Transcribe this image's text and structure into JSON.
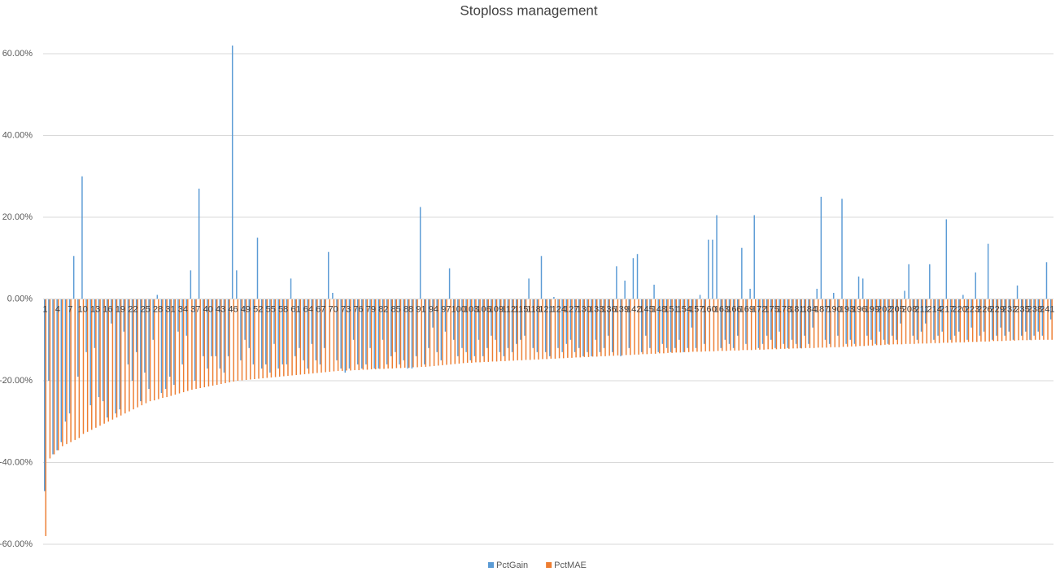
{
  "chart_data": {
    "type": "bar",
    "title": "Stoploss management",
    "categories": [
      "1",
      null,
      null,
      "4",
      null,
      null,
      "7",
      null,
      null,
      "10",
      null,
      null,
      "13",
      null,
      null,
      "16",
      null,
      null,
      "19",
      null,
      null,
      "22",
      null,
      null,
      "25",
      null,
      null,
      "28",
      null,
      null,
      "31",
      null,
      null,
      "34",
      null,
      null,
      "37",
      null,
      null,
      "40",
      null,
      null,
      "43",
      null,
      null,
      "46",
      null,
      null,
      "49",
      null,
      null,
      "52",
      null,
      null,
      "55",
      null,
      null,
      "58",
      null,
      null,
      "61",
      null,
      null,
      "64",
      null,
      null,
      "67",
      null,
      null,
      "70",
      null,
      null,
      "73",
      null,
      null,
      "76",
      null,
      null,
      "79",
      null,
      null,
      "82",
      null,
      null,
      "85",
      null,
      null,
      "88",
      null,
      null,
      "91",
      null,
      null,
      "94",
      null,
      null,
      "97",
      null,
      null,
      "100",
      null,
      null,
      "103",
      null,
      null,
      "106",
      null,
      null,
      "109",
      null,
      null,
      "112",
      null,
      null,
      "115",
      null,
      null,
      "118",
      null,
      null,
      "121",
      null,
      null,
      "124",
      null,
      null,
      "127",
      null,
      null,
      "130",
      null,
      null,
      "133",
      null,
      null,
      "136",
      null,
      null,
      "139",
      null,
      null,
      "142",
      null,
      null,
      "145",
      null,
      null,
      "148",
      null,
      null,
      "151",
      null,
      null,
      "154",
      null,
      null,
      "157",
      null,
      null,
      "160",
      null,
      null,
      "163",
      null,
      null,
      "166",
      null,
      null,
      "169",
      null,
      null,
      "172",
      null,
      null,
      "175",
      null,
      null,
      "178",
      null,
      null,
      "181",
      null,
      null,
      "184",
      null,
      null,
      "187",
      null,
      null,
      "190",
      null,
      null,
      "193",
      null,
      null,
      "196",
      null,
      null,
      "199",
      null,
      null,
      "202",
      null,
      null,
      "205",
      null,
      null,
      "208",
      null,
      null,
      "211",
      null,
      null,
      "214",
      null,
      null,
      "217",
      null,
      null,
      "220",
      null,
      null,
      "223",
      null,
      null,
      "226",
      null,
      null,
      "229",
      null,
      null,
      "232",
      null,
      null,
      "235",
      null,
      null,
      "238",
      null,
      null,
      "241",
      null
    ],
    "series": [
      {
        "name": "PctGain",
        "color": "#5b9bd5",
        "values": [
          -47,
          -20,
          -38,
          -37,
          -35,
          -30,
          -28,
          10.5,
          -19,
          30,
          -13,
          -26,
          -12,
          -24,
          -25,
          -29,
          -6,
          -28,
          -27,
          -8,
          -16,
          -20,
          -13,
          -25,
          -18,
          -22,
          -10,
          1,
          -23,
          -22,
          -19,
          -21,
          -8,
          -16,
          -9,
          7,
          -20,
          27,
          -14,
          -17,
          -14,
          -14,
          -17,
          -18,
          -14,
          62,
          7,
          -15,
          -10,
          -12,
          -16,
          15,
          -17,
          -16,
          -18,
          -11,
          -17,
          -16,
          -16,
          5,
          -14,
          -12,
          -15,
          -17,
          -11,
          -15,
          -16,
          -12,
          11.5,
          1.5,
          -15,
          -17,
          -18,
          -17,
          -10,
          -16,
          -17,
          -16,
          -12,
          -17,
          -17,
          -10,
          -16,
          -14,
          -13,
          -16,
          -15,
          -17,
          -17,
          -14,
          22.5,
          -16,
          -12,
          -7,
          -13,
          -15,
          -8,
          7.5,
          -10,
          -14,
          -12,
          -13,
          -15,
          -14,
          -10,
          -14,
          -12,
          -9,
          -10,
          -13,
          -14,
          -12,
          -13,
          -11,
          -10,
          -9,
          5,
          -12,
          -13,
          10.5,
          -13,
          -14,
          0.5,
          -12,
          -13,
          -11,
          -10,
          -13,
          -12,
          -14,
          -13,
          -14,
          -10,
          -13,
          -12,
          -9,
          -13,
          8,
          -14,
          4.5,
          -12,
          10,
          11,
          -13,
          -9,
          -12,
          3.5,
          -13,
          -11,
          -12,
          -13,
          -12,
          -10,
          -13,
          -12,
          -7,
          -12,
          1,
          -11,
          14.5,
          14.5,
          20.5,
          -12,
          -10,
          -11,
          -12,
          -9,
          12.5,
          -11,
          2.5,
          20.5,
          -12,
          -11,
          -9,
          -10,
          -12,
          -8,
          -11,
          -12,
          -10,
          -11,
          -12,
          -9,
          -11,
          -7,
          2.5,
          25,
          -10,
          -11,
          1.5,
          -9,
          24.5,
          -11,
          -10,
          -11,
          5.5,
          5,
          -9,
          -10,
          -11,
          -8,
          -10,
          -11,
          -9,
          -10,
          -6,
          2,
          8.5,
          -9,
          -10,
          -8,
          -6,
          8.5,
          -10,
          -9,
          -8,
          19.5,
          -10,
          -9,
          -8,
          1,
          -10,
          -7,
          6.5,
          -9,
          -8,
          13.5,
          -10,
          -9,
          -7,
          -9,
          -8,
          -10,
          3.3,
          -9,
          -8,
          -10,
          -9,
          -8,
          -9,
          9,
          -5
        ]
      },
      {
        "name": "PctMAE",
        "color": "#ed7d31",
        "values": [
          -58,
          -39,
          -38,
          -37,
          -36,
          -35.5,
          -35,
          -34.5,
          -34,
          -33,
          -32.5,
          -32,
          -31.5,
          -31,
          -30.5,
          -30,
          -29.5,
          -29,
          -28.5,
          -28,
          -27.5,
          -27,
          -26.5,
          -26,
          -25.5,
          -25,
          -24.8,
          -24.5,
          -24.2,
          -24,
          -23.7,
          -23.4,
          -23.1,
          -22.8,
          -22.5,
          -22.2,
          -22,
          -21.8,
          -21.6,
          -21.4,
          -21.2,
          -21,
          -20.8,
          -20.6,
          -20.4,
          -20.2,
          -20,
          -19.9,
          -19.8,
          -19.7,
          -19.6,
          -19.5,
          -19.4,
          -19.3,
          -19.2,
          -19.1,
          -19,
          -18.9,
          -18.8,
          -18.7,
          -18.6,
          -18.5,
          -18.4,
          -18.3,
          -18.2,
          -18.1,
          -18,
          -17.9,
          -17.8,
          -17.7,
          -17.6,
          -17.6,
          -17.5,
          -17.5,
          -17.4,
          -17.4,
          -17.3,
          -17.3,
          -17.2,
          -17.2,
          -17.1,
          -17.1,
          -17,
          -17,
          -16.9,
          -16.9,
          -16.8,
          -16.8,
          -16.7,
          -16.7,
          -16.6,
          -16.6,
          -16.5,
          -16.4,
          -16.3,
          -16.2,
          -16.1,
          -16,
          -15.9,
          -15.8,
          -15.7,
          -15.6,
          -15.6,
          -15.5,
          -15.5,
          -15.4,
          -15.4,
          -15.3,
          -15.3,
          -15.2,
          -15.2,
          -15.1,
          -15.1,
          -15,
          -15,
          -14.9,
          -14.9,
          -14.8,
          -14.8,
          -14.7,
          -14.7,
          -14.6,
          -14.6,
          -14.5,
          -14.5,
          -14.4,
          -14.4,
          -14.3,
          -14.3,
          -14.2,
          -14.2,
          -14.1,
          -14.1,
          -14,
          -14,
          -13.9,
          -13.9,
          -13.8,
          -13.8,
          -13.7,
          -13.7,
          -13.6,
          -13.6,
          -13.5,
          -13.5,
          -13.4,
          -13.4,
          -13.3,
          -13.3,
          -13.2,
          -13.2,
          -13.1,
          -13.1,
          -13,
          -13,
          -12.9,
          -12.9,
          -12.9,
          -12.8,
          -12.8,
          -12.8,
          -12.7,
          -12.7,
          -12.7,
          -12.6,
          -12.6,
          -12.6,
          -12.5,
          -12.5,
          -12.5,
          -12.4,
          -12.4,
          -12.4,
          -12.3,
          -12.3,
          -12.3,
          -12.2,
          -12.2,
          -12.2,
          -12.1,
          -12.1,
          -12.1,
          -12,
          -12,
          -12,
          -11.9,
          -11.9,
          -11.9,
          -11.8,
          -11.8,
          -11.8,
          -11.7,
          -11.7,
          -11.6,
          -11.6,
          -11.5,
          -11.5,
          -11.4,
          -11.4,
          -11.3,
          -11.3,
          -11.2,
          -11.2,
          -11.1,
          -11.1,
          -11.1,
          -11,
          -11,
          -11,
          -10.9,
          -10.9,
          -10.9,
          -10.8,
          -10.8,
          -10.8,
          -10.7,
          -10.7,
          -10.7,
          -10.6,
          -10.6,
          -10.6,
          -10.5,
          -10.5,
          -10.5,
          -10.4,
          -10.4,
          -10.4,
          -10.3,
          -10.3,
          -10.3,
          -10.2,
          -10.2,
          -10.2,
          -10.1,
          -10.1,
          -10.1,
          -10.1,
          -10,
          -10,
          -10,
          -10,
          -10
        ]
      }
    ],
    "ylim": [
      -60,
      60
    ],
    "yticks": [
      {
        "value": -60,
        "label": "-60.00%"
      },
      {
        "value": -40,
        "label": "-40.00%"
      },
      {
        "value": -20,
        "label": "-20.00%"
      },
      {
        "value": 0,
        "label": "0.00%"
      },
      {
        "value": 20,
        "label": "20.00%"
      },
      {
        "value": 40,
        "label": "40.00%"
      },
      {
        "value": 60,
        "label": "60.00%"
      }
    ],
    "grid": true,
    "legend": "bottom"
  }
}
